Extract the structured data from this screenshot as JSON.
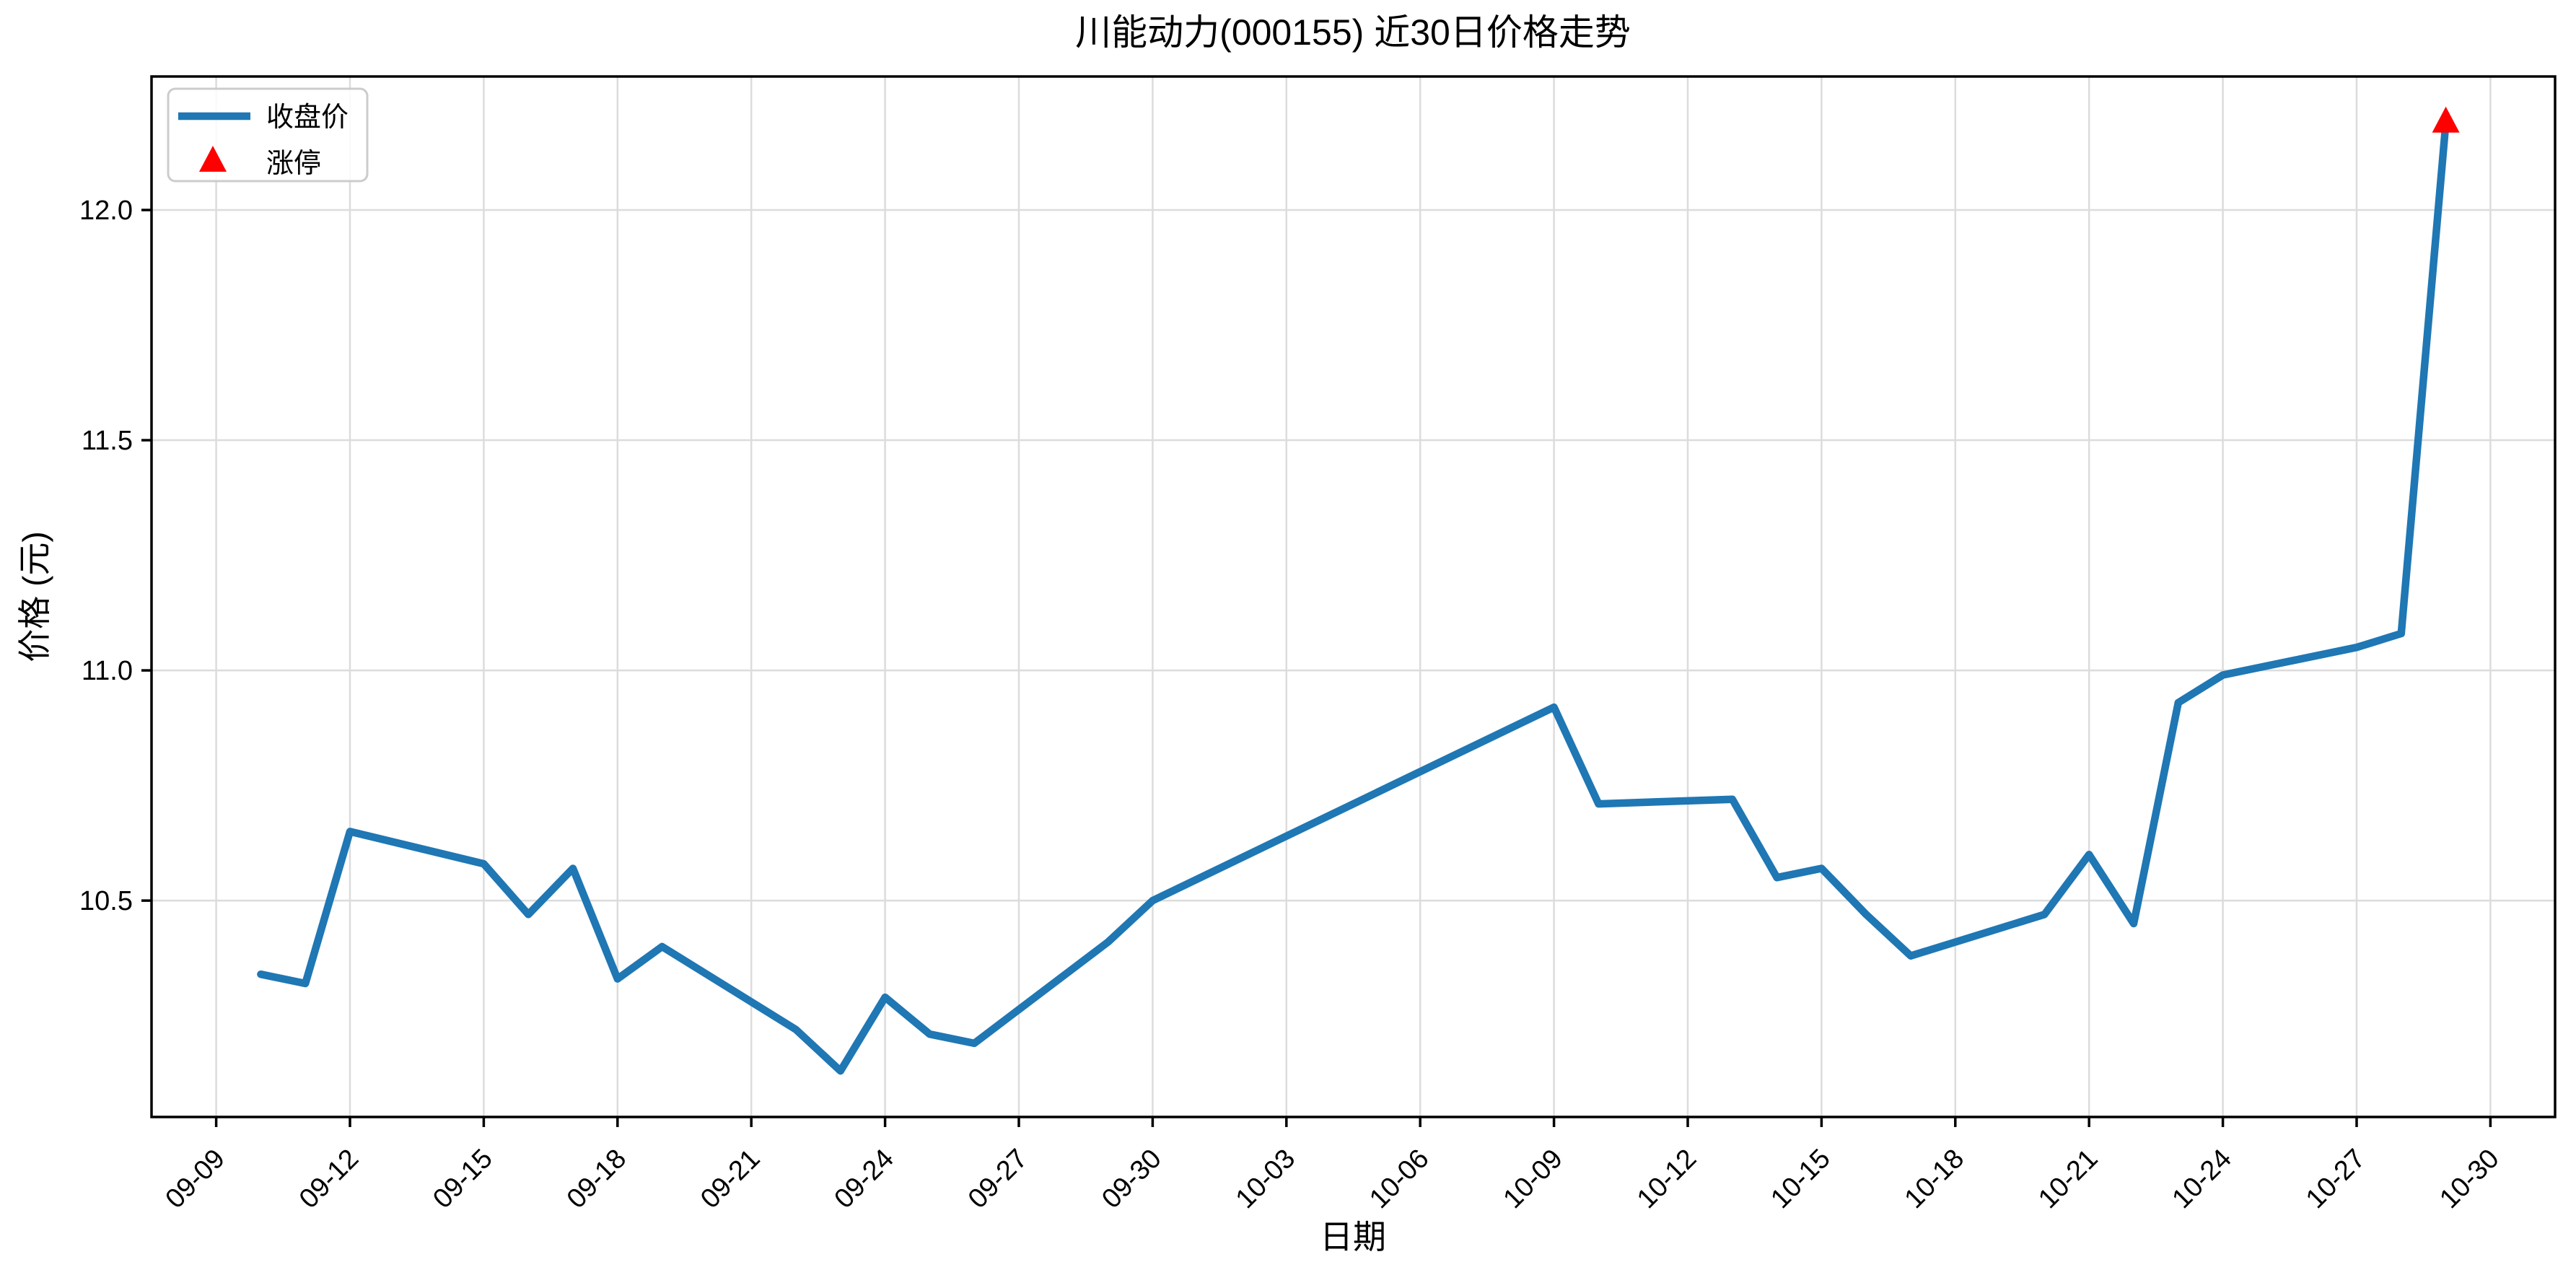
{
  "chart_data": {
    "type": "line",
    "title": "川能动力(000155) 近30日价格走势",
    "xlabel": "日期",
    "ylabel": "价格 (元)",
    "x": [
      "09-10",
      "09-11",
      "09-12",
      "09-15",
      "09-16",
      "09-17",
      "09-18",
      "09-19",
      "09-22",
      "09-23",
      "09-24",
      "09-25",
      "09-26",
      "09-29",
      "09-30",
      "10-09",
      "10-10",
      "10-13",
      "10-14",
      "10-15",
      "10-16",
      "10-17",
      "10-20",
      "10-21",
      "10-22",
      "10-23",
      "10-24",
      "10-27",
      "10-28",
      "10-29"
    ],
    "series": [
      {
        "name": "收盘价",
        "color": "#1f77b4",
        "values": [
          10.34,
          10.32,
          10.65,
          10.58,
          10.47,
          10.57,
          10.33,
          10.4,
          10.22,
          10.13,
          10.29,
          10.21,
          10.19,
          10.41,
          10.5,
          10.92,
          10.71,
          10.72,
          10.55,
          10.57,
          10.47,
          10.38,
          10.47,
          10.6,
          10.45,
          10.93,
          10.99,
          11.05,
          11.08,
          12.19
        ]
      }
    ],
    "markers": [
      {
        "name": "涨停",
        "x": "10-29",
        "value": 12.19,
        "symbol": "triangle-up",
        "color": "#ff0000"
      }
    ],
    "x_ticks": [
      "09-09",
      "09-12",
      "09-15",
      "09-18",
      "09-21",
      "09-24",
      "09-27",
      "09-30",
      "10-03",
      "10-06",
      "10-09",
      "10-12",
      "10-15",
      "10-18",
      "10-21",
      "10-24",
      "10-27",
      "10-30"
    ],
    "y_ticks": [
      "10.5",
      "11.0",
      "11.5",
      "12.0"
    ],
    "x_origin": "09-09",
    "xlim_offset_days": [
      -1.45,
      52.45
    ],
    "ylim": [
      10.03,
      12.29
    ],
    "grid": true,
    "grid_color": "#dcdcdc",
    "legend_position": "upper-left",
    "legend": {
      "entries": [
        {
          "label": "收盘价",
          "type": "line",
          "color": "#1f77b4"
        },
        {
          "label": "涨停",
          "type": "triangle-up",
          "color": "#ff0000"
        }
      ]
    }
  }
}
